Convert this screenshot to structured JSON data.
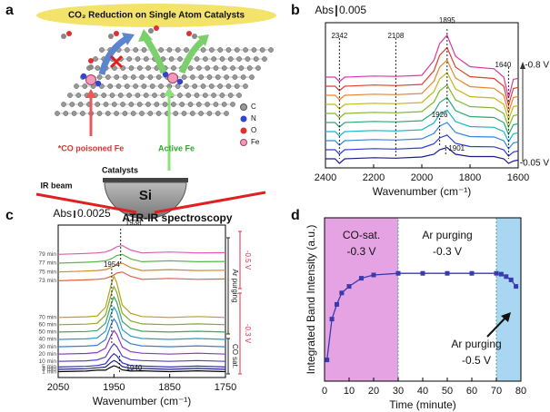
{
  "diagram": {
    "panel": "a",
    "title": "CO₂ Reduction on Single Atom Catalysts",
    "legend": [
      "C",
      "N",
      "O",
      "Fe"
    ],
    "labels": {
      "poisoned": "*CO poisoned Fe",
      "active": "Active Fe",
      "catalysts": "Catalysts",
      "ir_beam": "IR beam",
      "si": "Si",
      "method": "ATR-IR spectroscopy"
    }
  },
  "chart_data": [
    {
      "type": "line",
      "panel": "b",
      "xlabel": "Wavenumber (cm⁻¹)",
      "x": [
        2400,
        2360,
        2342,
        2320,
        2200,
        2108,
        2000,
        1950,
        1926,
        1895,
        1860,
        1800,
        1700,
        1660,
        1640,
        1620,
        1600
      ],
      "series": [
        {
          "color": "#1a1a8c",
          "values": [
            0,
            0,
            -0.002,
            0,
            0.0005,
            0.0003,
            0.0008,
            0.002,
            0.004,
            0.005,
            0.002,
            0.001,
            0.001,
            0,
            -0.002,
            -0.001,
            -0.0005
          ]
        },
        {
          "color": "#2b3bd6",
          "values": [
            0.004,
            0.004,
            0.002,
            0.004,
            0.0045,
            0.0043,
            0.0048,
            0.0066,
            0.0092,
            0.0105,
            0.0068,
            0.0054,
            0.0053,
            0.004,
            0.0012,
            0.003,
            0.0035
          ]
        },
        {
          "color": "#2f86e0",
          "values": [
            0.008,
            0.008,
            0.006,
            0.008,
            0.0085,
            0.0083,
            0.0088,
            0.0112,
            0.0144,
            0.016,
            0.0116,
            0.0098,
            0.0096,
            0.008,
            0.0044,
            0.007,
            0.0075
          ]
        },
        {
          "color": "#19b5c9",
          "values": [
            0.012,
            0.012,
            0.01,
            0.012,
            0.0125,
            0.0123,
            0.0128,
            0.0158,
            0.0196,
            0.0215,
            0.0164,
            0.0142,
            0.0139,
            0.012,
            0.0076,
            0.011,
            0.0115
          ]
        },
        {
          "color": "#2aa876",
          "values": [
            0.016,
            0.016,
            0.014,
            0.016,
            0.0165,
            0.0163,
            0.0168,
            0.0204,
            0.0248,
            0.027,
            0.0212,
            0.0186,
            0.0182,
            0.016,
            0.0108,
            0.015,
            0.0155
          ]
        },
        {
          "color": "#7fb82a",
          "values": [
            0.02,
            0.02,
            0.018,
            0.02,
            0.0205,
            0.0203,
            0.0208,
            0.025,
            0.03,
            0.0325,
            0.026,
            0.023,
            0.0225,
            0.02,
            0.014,
            0.019,
            0.0195
          ]
        },
        {
          "color": "#c8b41e",
          "values": [
            0.024,
            0.024,
            0.022,
            0.024,
            0.0245,
            0.0243,
            0.0248,
            0.0296,
            0.0352,
            0.038,
            0.0308,
            0.0274,
            0.0268,
            0.024,
            0.0172,
            0.023,
            0.0235
          ]
        },
        {
          "color": "#e8842a",
          "values": [
            0.028,
            0.028,
            0.026,
            0.028,
            0.0285,
            0.0283,
            0.0288,
            0.0342,
            0.0404,
            0.0435,
            0.0356,
            0.0318,
            0.0311,
            0.028,
            0.0204,
            0.027,
            0.0275
          ]
        },
        {
          "color": "#e0402c",
          "values": [
            0.032,
            0.032,
            0.03,
            0.032,
            0.0325,
            0.0323,
            0.0328,
            0.0388,
            0.0456,
            0.049,
            0.0404,
            0.0362,
            0.0354,
            0.032,
            0.0236,
            0.031,
            0.0315
          ]
        },
        {
          "color": "#d63aa0",
          "values": [
            0.036,
            0.036,
            0.034,
            0.036,
            0.0365,
            0.0363,
            0.0368,
            0.0434,
            0.0508,
            0.0545,
            0.0452,
            0.0406,
            0.0397,
            0.036,
            0.0268,
            0.035,
            0.0355
          ]
        }
      ],
      "xlim": [
        2400,
        1600
      ],
      "xticks": [
        2400,
        2200,
        2000,
        1800,
        1600
      ],
      "ylim": [
        -0.004,
        0.06
      ],
      "scale_bar": {
        "label": "Abs",
        "value": 0.005
      },
      "peak_labels": [
        2342,
        2108,
        1895,
        1640,
        1926,
        1901
      ],
      "voltage_labels": [
        "-0.8 V",
        "-0.05 V"
      ]
    },
    {
      "type": "line",
      "panel": "c",
      "xlabel": "Wavenumber (cm⁻¹)",
      "x": [
        2050,
        2000,
        1980,
        1965,
        1955,
        1950,
        1945,
        1935,
        1920,
        1900,
        1850,
        1800,
        1750
      ],
      "series": [
        {
          "name": "1 min",
          "color": "#000000",
          "values": [
            0,
            0.0002,
            0.0005,
            0.0005,
            0.0016,
            0.002,
            0.0017,
            0.0006,
            0.0002,
            0.0003,
            0,
            0.0003,
            0
          ]
        },
        {
          "name": "3 min",
          "color": "#1f1f7a",
          "values": [
            0.0008,
            0.001,
            0.0013,
            0.00155,
            0.0032,
            0.0038,
            0.00335,
            0.0017,
            0.0011,
            0.0011,
            0.0008,
            0.0011,
            0.0008
          ]
        },
        {
          "name": "5 min",
          "color": "#3030c0",
          "values": [
            0.0016,
            0.0018,
            0.0021,
            0.0027,
            0.0052,
            0.0061,
            0.0054,
            0.003,
            0.0021,
            0.0019,
            0.0016,
            0.0019,
            0.0016
          ]
        },
        {
          "name": "10 min",
          "color": "#5a3fbf",
          "values": [
            0.0035,
            0.0037,
            0.004,
            0.005,
            0.0083,
            0.0095,
            0.0086,
            0.0053,
            0.0041,
            0.0038,
            0.0035,
            0.0038,
            0.0035
          ]
        },
        {
          "name": "20 min",
          "color": "#8a3ab8",
          "values": [
            0.006,
            0.0062,
            0.0065,
            0.008,
            0.0124,
            0.014,
            0.0128,
            0.0084,
            0.0068,
            0.0063,
            0.006,
            0.0063,
            0.006
          ]
        },
        {
          "name": "30 min",
          "color": "#3a7fd0",
          "values": [
            0.0085,
            0.0087,
            0.009,
            0.0109,
            0.0161,
            0.018,
            0.0166,
            0.0114,
            0.0095,
            0.0088,
            0.0085,
            0.0088,
            0.0085
          ]
        },
        {
          "name": "40 min",
          "color": "#2aa0c0",
          "values": [
            0.011,
            0.0112,
            0.0115,
            0.0138,
            0.0198,
            0.022,
            0.0204,
            0.0143,
            0.0121,
            0.0113,
            0.011,
            0.0113,
            0.011
          ]
        },
        {
          "name": "50 min",
          "color": "#3aa860",
          "values": [
            0.0135,
            0.0137,
            0.014,
            0.0165,
            0.0231,
            0.0255,
            0.0237,
            0.0171,
            0.0147,
            0.0138,
            0.0135,
            0.0138,
            0.0135
          ]
        },
        {
          "name": "60 min",
          "color": "#8aa82a",
          "values": [
            0.016,
            0.0162,
            0.0165,
            0.0193,
            0.0264,
            0.029,
            0.0271,
            0.0199,
            0.0173,
            0.0163,
            0.016,
            0.0163,
            0.016
          ]
        },
        {
          "name": "70 min",
          "color": "#b8a020",
          "values": [
            0.0185,
            0.0187,
            0.019,
            0.022,
            0.0297,
            0.0325,
            0.0304,
            0.0227,
            0.0199,
            0.0188,
            0.0185,
            0.0188,
            0.0185
          ]
        },
        {
          "name": "73 min",
          "color": "#e06040",
          "values": [
            0.031,
            0.0313,
            0.0315,
            0.0318,
            0.0325,
            0.033,
            0.0336,
            0.034,
            0.0325,
            0.0315,
            0.0318,
            0.0315,
            0.0316
          ]
        },
        {
          "name": "75 min",
          "color": "#d08a30",
          "values": [
            0.034,
            0.0343,
            0.0345,
            0.0348,
            0.0355,
            0.036,
            0.0366,
            0.037,
            0.0355,
            0.0345,
            0.0348,
            0.0345,
            0.0346
          ]
        },
        {
          "name": "77 min",
          "color": "#5ab84a",
          "values": [
            0.037,
            0.0373,
            0.0375,
            0.0378,
            0.0385,
            0.039,
            0.0396,
            0.04,
            0.0385,
            0.0375,
            0.0378,
            0.0375,
            0.0376
          ]
        },
        {
          "name": "79 min",
          "color": "#e05ab0",
          "values": [
            0.04,
            0.0403,
            0.0405,
            0.0408,
            0.0415,
            0.042,
            0.0426,
            0.043,
            0.0415,
            0.0405,
            0.0408,
            0.0405,
            0.0406
          ]
        }
      ],
      "xlim": [
        2050,
        1750
      ],
      "xticks": [
        2050,
        1950,
        1850,
        1750
      ],
      "ylim": [
        -0.002,
        0.05
      ],
      "scale_bar": {
        "label": "Abs",
        "value": 0.0025
      },
      "peak_labels": [
        1938,
        1954,
        1940
      ],
      "side_labels": [
        "-0.5 V",
        "-0.3 V",
        "Ar purging",
        "CO sat."
      ]
    },
    {
      "type": "line",
      "panel": "d",
      "xlabel": "Time (minute)",
      "ylabel": "Integrated Band Intensity (a.u.)",
      "x": [
        1,
        3,
        5,
        7,
        10,
        15,
        20,
        30,
        40,
        50,
        60,
        70,
        72,
        74,
        76,
        78
      ],
      "values": [
        0.13,
        0.38,
        0.47,
        0.54,
        0.58,
        0.63,
        0.65,
        0.66,
        0.66,
        0.66,
        0.66,
        0.66,
        0.655,
        0.64,
        0.62,
        0.58
      ],
      "color": "#3a3ab0",
      "xlim": [
        0,
        80
      ],
      "xticks": [
        0,
        10,
        20,
        30,
        40,
        50,
        60,
        70,
        80
      ],
      "ylim": [
        0,
        1
      ],
      "regions": [
        {
          "x0": 0,
          "x1": 30,
          "color": "#e6a3e4",
          "labels": [
            "CO-sat.",
            "-0.3 V"
          ]
        },
        {
          "x0": 30,
          "x1": 70,
          "color": "#ffffff",
          "labels": [
            "Ar purging",
            "-0.3 V"
          ]
        },
        {
          "x0": 70,
          "x1": 80,
          "color": "#a9d6f0",
          "labels": [
            "Ar purging",
            "-0.5 V"
          ]
        }
      ]
    }
  ]
}
